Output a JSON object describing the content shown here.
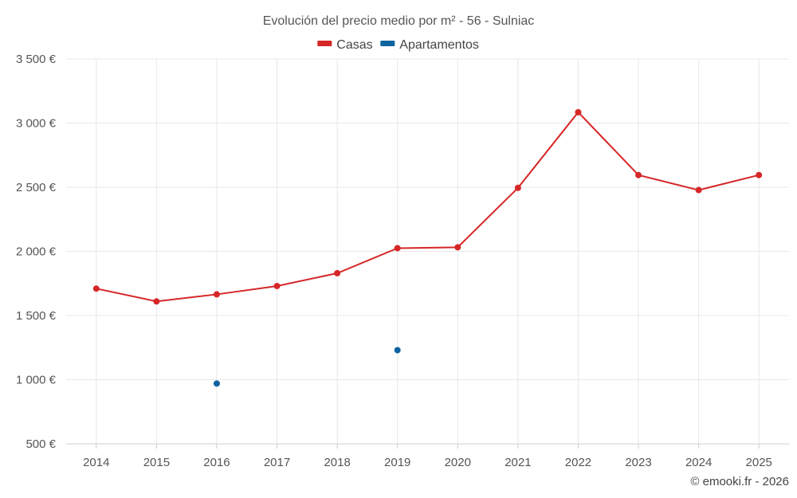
{
  "chart_data": {
    "type": "line",
    "title": "Evolución del precio medio por m² - 56 - Sulniac",
    "categories": [
      "2014",
      "2015",
      "2016",
      "2017",
      "2018",
      "2019",
      "2020",
      "2021",
      "2022",
      "2023",
      "2024",
      "2025"
    ],
    "series": [
      {
        "name": "Casas",
        "color": "#d62728",
        "values": [
          1710,
          1610,
          1665,
          1730,
          1830,
          2025,
          2032,
          2495,
          3085,
          2595,
          2478,
          2595
        ]
      },
      {
        "name": "Apartamentos",
        "color": "#0f64a0",
        "values": [
          null,
          null,
          970,
          null,
          null,
          1230,
          null,
          null,
          null,
          null,
          null,
          null
        ]
      }
    ],
    "ylim": [
      500,
      3500
    ],
    "yticks": [
      500,
      1000,
      1500,
      2000,
      2500,
      3000,
      3500
    ],
    "ytick_labels": [
      "500 €",
      "1 000 €",
      "1 500 €",
      "2 000 €",
      "2 500 €",
      "3 000 €",
      "3 500 €"
    ],
    "legend_position": "top-center",
    "grid": true
  },
  "credit": "© emooki.fr - 2026"
}
